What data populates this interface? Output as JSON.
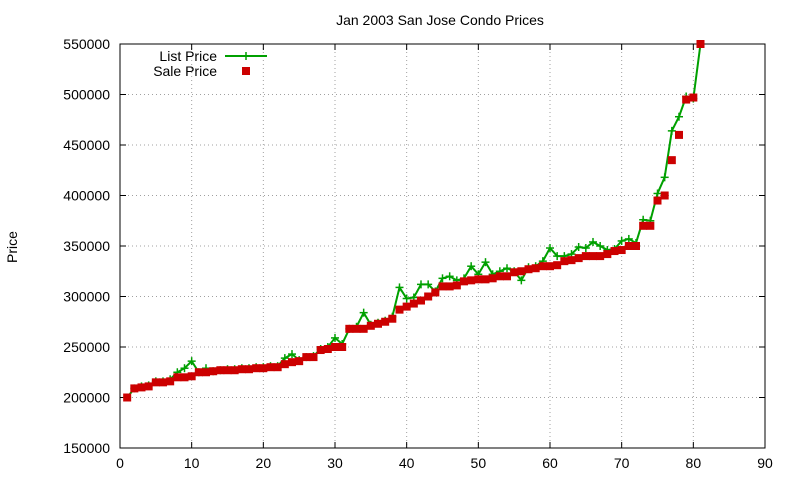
{
  "chart_data": {
    "type": "scatter",
    "title": "Jan 2003 San Jose Condo Prices",
    "xlabel": "",
    "ylabel": "Price",
    "xlim": [
      0,
      90
    ],
    "ylim": [
      150000,
      550000
    ],
    "x_ticks": [
      0,
      10,
      20,
      30,
      40,
      50,
      60,
      70,
      80,
      90
    ],
    "y_ticks": [
      150000,
      200000,
      250000,
      300000,
      350000,
      400000,
      450000,
      500000,
      550000
    ],
    "grid": true,
    "legend_position": "top-left",
    "colors": {
      "list": "#00a000",
      "sale": "#cc0000"
    },
    "series": [
      {
        "name": "List Price",
        "style": "line-with-plus-markers",
        "x": [
          1,
          2,
          3,
          4,
          5,
          6,
          7,
          8,
          9,
          10,
          11,
          12,
          13,
          14,
          15,
          16,
          17,
          18,
          19,
          20,
          21,
          22,
          23,
          24,
          25,
          26,
          27,
          28,
          29,
          30,
          31,
          32,
          33,
          34,
          35,
          36,
          37,
          38,
          39,
          40,
          41,
          42,
          43,
          44,
          45,
          46,
          47,
          48,
          49,
          50,
          51,
          52,
          53,
          54,
          55,
          56,
          57,
          58,
          59,
          60,
          61,
          62,
          63,
          64,
          65,
          66,
          67,
          68,
          69,
          70,
          71,
          72,
          73,
          74,
          75,
          76,
          77,
          78,
          79,
          80,
          81
        ],
        "values": [
          200000,
          209000,
          211000,
          212000,
          216000,
          216000,
          218000,
          225000,
          229000,
          236000,
          225000,
          229000,
          226000,
          227000,
          228000,
          228000,
          229000,
          229000,
          230000,
          230000,
          231000,
          231000,
          239000,
          243000,
          237000,
          240000,
          241000,
          248000,
          250000,
          259000,
          253000,
          268000,
          270000,
          284000,
          272000,
          274000,
          276000,
          280000,
          309000,
          298000,
          299000,
          312000,
          312000,
          305000,
          318000,
          320000,
          316000,
          318000,
          330000,
          322000,
          334000,
          322000,
          325000,
          328000,
          325000,
          316000,
          329000,
          330000,
          335000,
          348000,
          340000,
          340000,
          342000,
          349000,
          348000,
          354000,
          350000,
          346000,
          347000,
          355000,
          357000,
          353000,
          376000,
          375000,
          402000,
          418000,
          464000,
          478000,
          498000,
          496000,
          550000
        ]
      },
      {
        "name": "Sale Price",
        "style": "square-markers",
        "x": [
          1,
          2,
          3,
          4,
          5,
          6,
          7,
          8,
          9,
          10,
          11,
          12,
          13,
          14,
          15,
          16,
          17,
          18,
          19,
          20,
          21,
          22,
          23,
          24,
          25,
          26,
          27,
          28,
          29,
          30,
          31,
          32,
          33,
          34,
          35,
          36,
          37,
          38,
          39,
          40,
          41,
          42,
          43,
          44,
          45,
          46,
          47,
          48,
          49,
          50,
          51,
          52,
          53,
          54,
          55,
          56,
          57,
          58,
          59,
          60,
          61,
          62,
          63,
          64,
          65,
          66,
          67,
          68,
          69,
          70,
          71,
          72,
          73,
          74,
          75,
          76,
          77,
          78,
          79,
          80,
          81
        ],
        "values": [
          200000,
          209000,
          210000,
          211000,
          215000,
          215000,
          216000,
          220000,
          220000,
          221000,
          225000,
          225000,
          226000,
          227000,
          227000,
          227000,
          228000,
          228000,
          229000,
          229000,
          230000,
          230000,
          233000,
          235000,
          236000,
          240000,
          240000,
          247000,
          248000,
          250000,
          250000,
          268000,
          268000,
          268000,
          271000,
          273000,
          275000,
          278000,
          287000,
          290000,
          293000,
          296000,
          300000,
          304000,
          310000,
          310000,
          311000,
          315000,
          316000,
          317000,
          317000,
          318000,
          320000,
          320000,
          324000,
          325000,
          327000,
          328000,
          330000,
          330000,
          331000,
          335000,
          336000,
          338000,
          340000,
          340000,
          340000,
          342000,
          345000,
          346000,
          350000,
          350000,
          370000,
          370000,
          395000,
          400000,
          435000,
          460000,
          495000,
          497000,
          550000
        ]
      }
    ]
  }
}
